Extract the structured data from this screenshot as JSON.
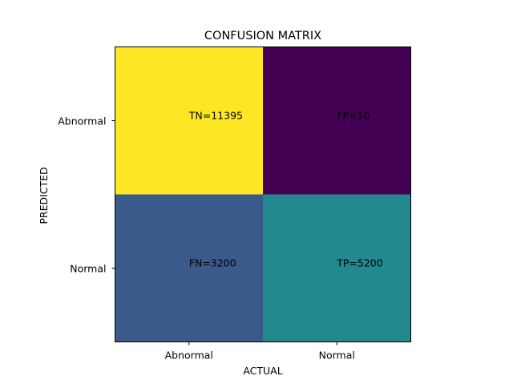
{
  "chart_data": {
    "type": "heatmap",
    "title": "CONFUSION MATRIX",
    "xlabel": "ACTUAL",
    "ylabel": "PREDICTED",
    "x_categories": [
      "Abnormal",
      "Normal"
    ],
    "y_categories": [
      "Abnormal",
      "Normal"
    ],
    "values": [
      [
        11395,
        10
      ],
      [
        3200,
        5200
      ]
    ],
    "cell_labels": [
      [
        "TN=11395",
        "FP=10"
      ],
      [
        "FN=3200",
        "TP=5200"
      ]
    ],
    "colormap": "viridis",
    "cell_colors": [
      [
        "#fde725",
        "#440154"
      ],
      [
        "#3b5a8c",
        "#23898e"
      ]
    ],
    "grid": false,
    "legend": "none"
  }
}
